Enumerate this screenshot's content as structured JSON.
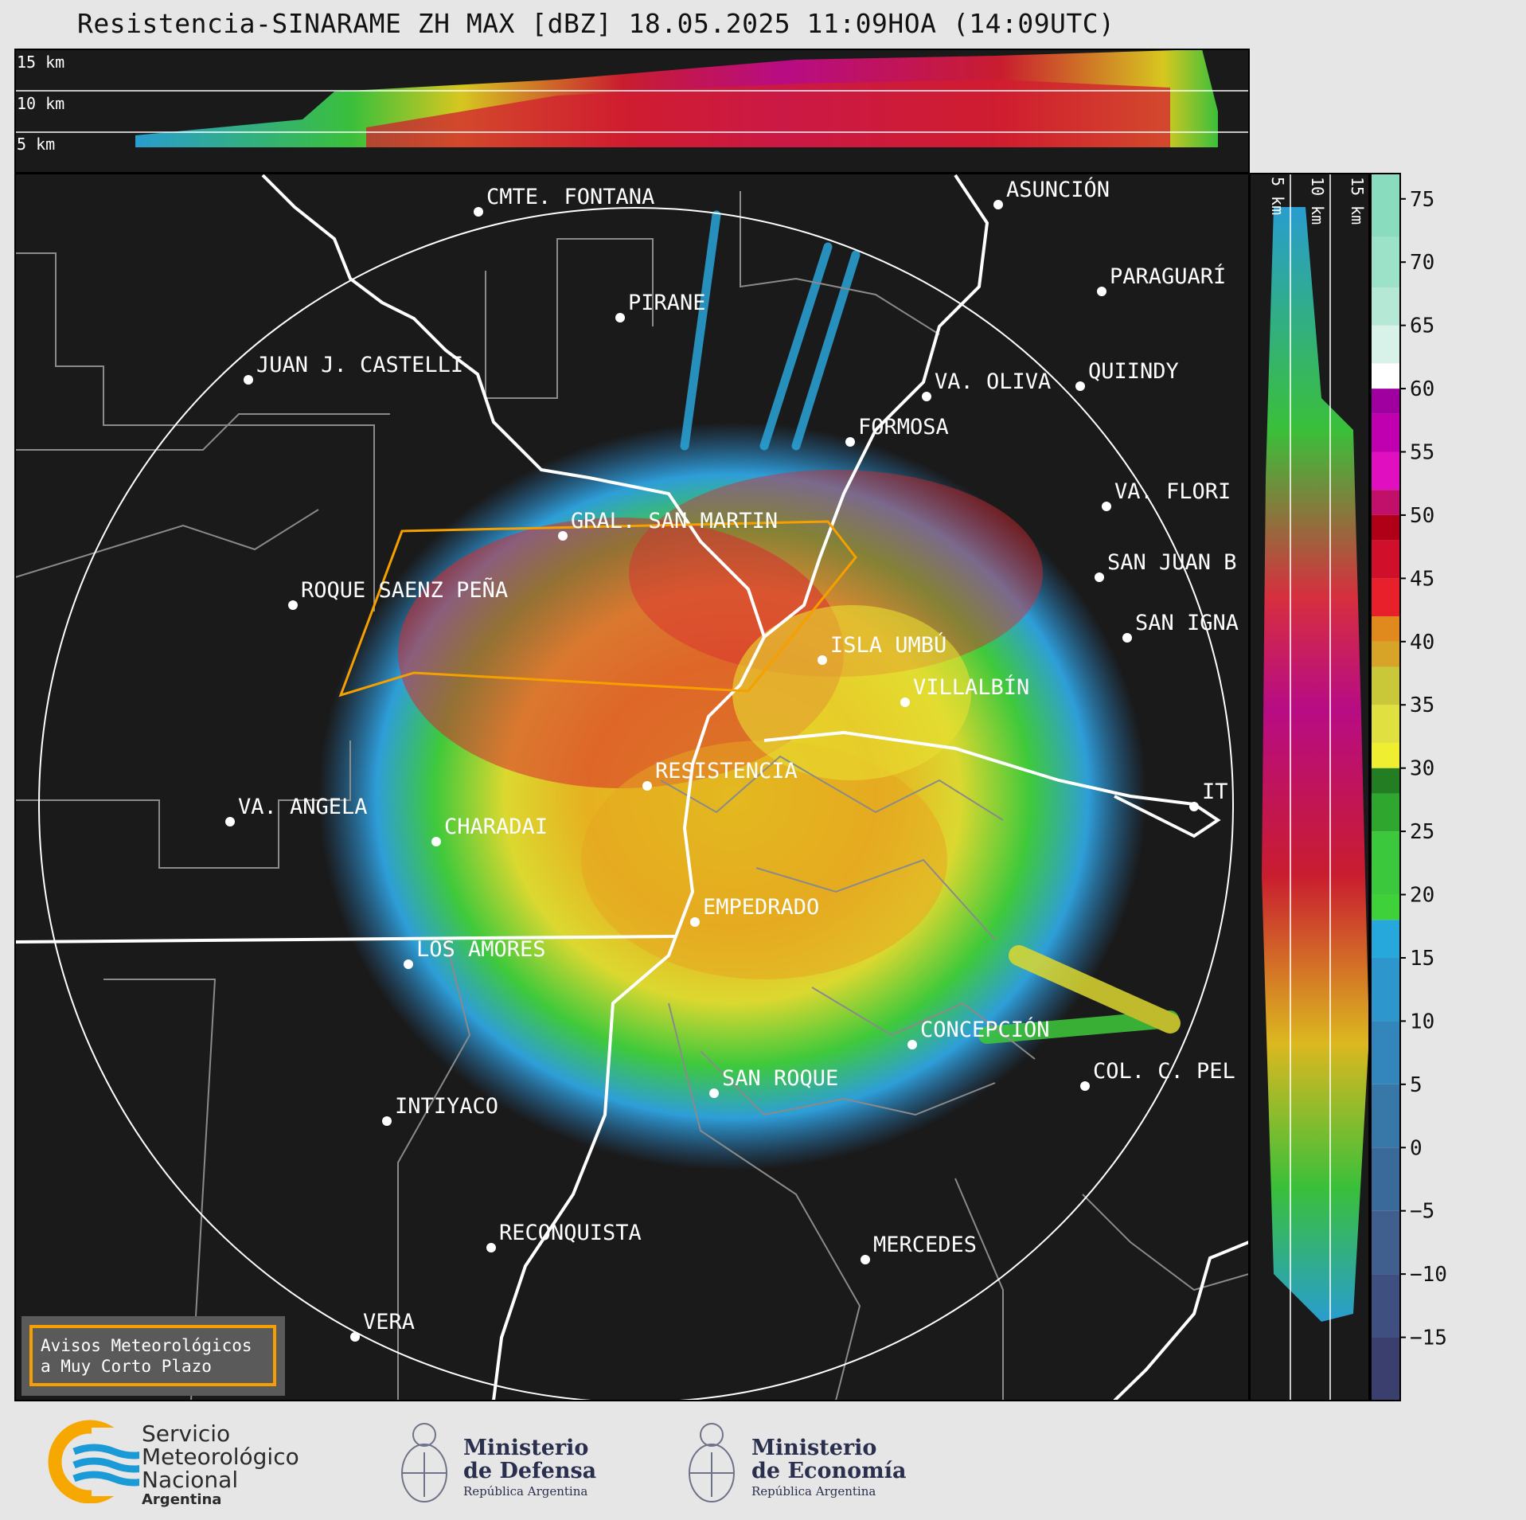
{
  "title": "Resistencia-SINARAME ZH MAX [dBZ] 18.05.2025 11:09HOA (14:09UTC)",
  "top_panel": {
    "height_labels": [
      "15 km",
      "10 km",
      "5 km"
    ]
  },
  "side_panel": {
    "height_labels": [
      "5 km",
      "10 km",
      "15 km"
    ]
  },
  "colorbar": {
    "ticks": [
      "75",
      "70",
      "65",
      "60",
      "55",
      "50",
      "45",
      "40",
      "35",
      "30",
      "25",
      "20",
      "15",
      "10",
      "5",
      "0",
      "−5",
      "−10",
      "−15"
    ],
    "range": [
      -20,
      77
    ]
  },
  "places": [
    {
      "name": "CMTE. FONTANA"
    },
    {
      "name": "ASUNCIÓN"
    },
    {
      "name": "PARAGUARÍ"
    },
    {
      "name": "PIRANE"
    },
    {
      "name": "JUAN J. CASTELLI"
    },
    {
      "name": "VA. OLIVA"
    },
    {
      "name": "QUIINDY"
    },
    {
      "name": "FORMOSA"
    },
    {
      "name": "VA. FLORI"
    },
    {
      "name": "GRAL. SAN MARTIN"
    },
    {
      "name": "SAN JUAN B"
    },
    {
      "name": "ROQUE SAENZ PEÑA"
    },
    {
      "name": "SAN IGNA"
    },
    {
      "name": "ISLA UMBÚ"
    },
    {
      "name": "VILLALBÍN"
    },
    {
      "name": "RESISTENCIA"
    },
    {
      "name": "VA. ANGELA"
    },
    {
      "name": "CHARADAI"
    },
    {
      "name": "IT"
    },
    {
      "name": "EMPEDRADO"
    },
    {
      "name": "LOS AMORES"
    },
    {
      "name": "CONCEPCIÓN"
    },
    {
      "name": "SAN ROQUE"
    },
    {
      "name": "COL. C. PEL"
    },
    {
      "name": "INTIYACO"
    },
    {
      "name": "RECONQUISTA"
    },
    {
      "name": "MERCEDES"
    },
    {
      "name": "VERA"
    }
  ],
  "warning_box": {
    "line1": "Avisos Meteorológicos",
    "line2": "a Muy Corto Plazo",
    "border_color": "#f5a000"
  },
  "footer": {
    "smn": {
      "line1": "Servicio",
      "line2": "Meteorológico",
      "line3": "Nacional",
      "line4": "Argentina"
    },
    "defensa": {
      "line1": "Ministerio",
      "line2": "de Defensa",
      "line3": "República Argentina"
    },
    "economia": {
      "line1": "Ministerio",
      "line2": "de Economía",
      "line3": "República Argentina"
    }
  },
  "colors": {
    "background": "#1a1a1a",
    "frame": "#e6e6e6",
    "accent_orange": "#f5a000",
    "smn_blue": "#1a9ad6",
    "smn_orange": "#f7a800"
  }
}
